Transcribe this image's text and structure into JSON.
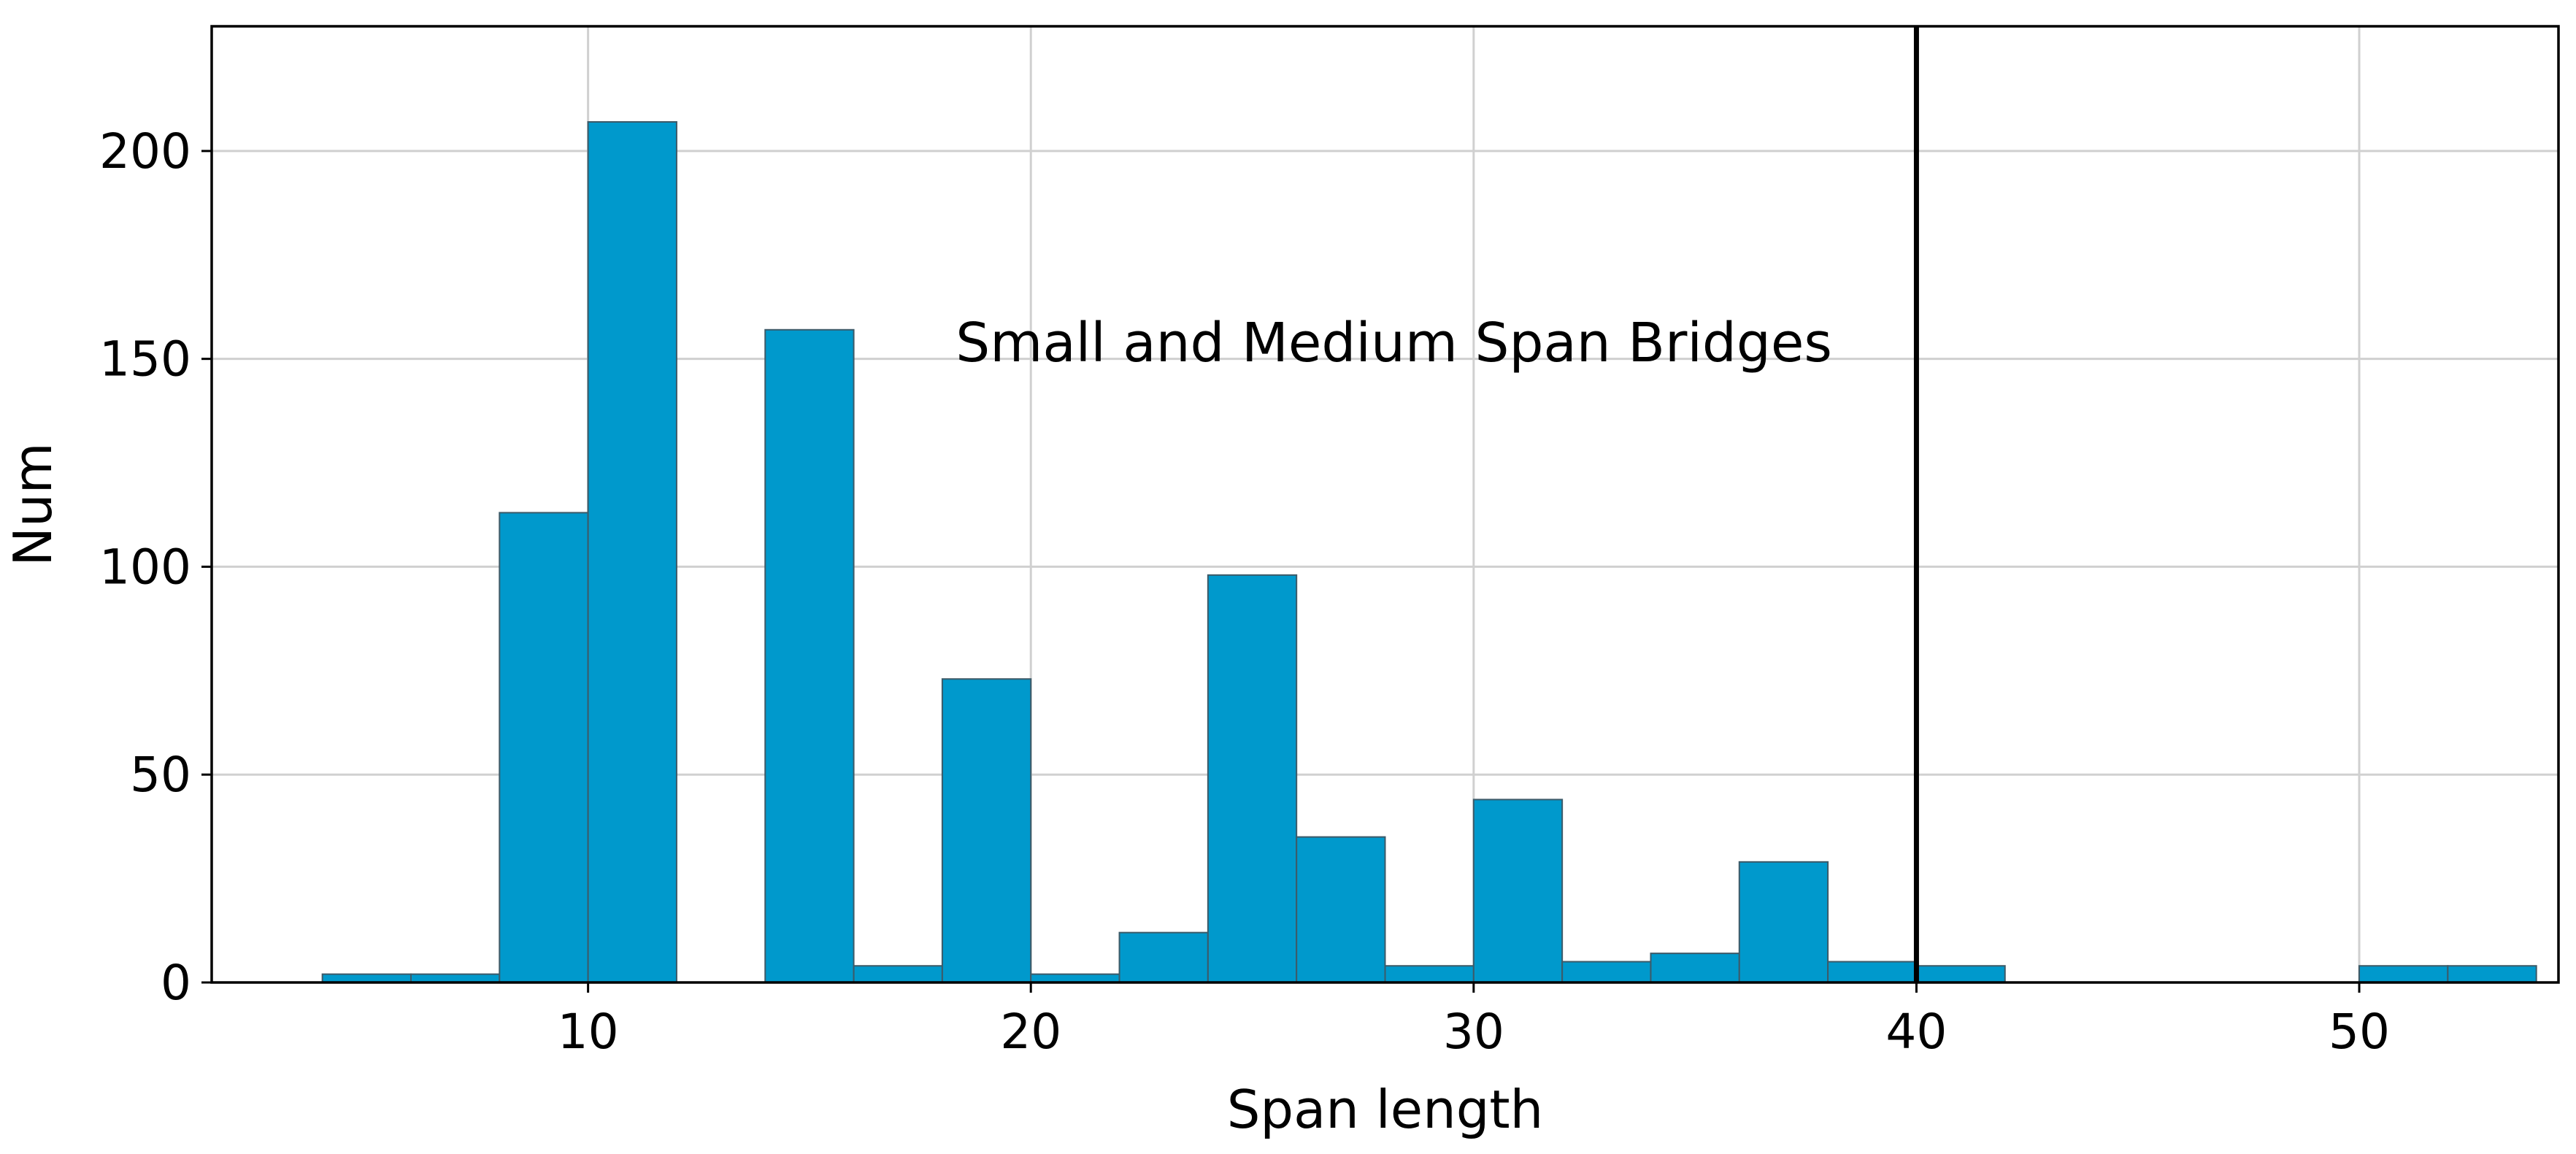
{
  "chart_data": {
    "type": "bar",
    "subtype": "histogram",
    "xlabel": "Span length",
    "ylabel": "Num",
    "xlim": [
      1.5,
      54.5
    ],
    "ylim": [
      0,
      230
    ],
    "xticks": [
      10,
      20,
      30,
      40,
      50
    ],
    "yticks": [
      0,
      50,
      100,
      150,
      200
    ],
    "grid": true,
    "bin_width": 2.0,
    "bins": [
      {
        "x0": 4.0,
        "x1": 6.0,
        "count": 2
      },
      {
        "x0": 6.0,
        "x1": 8.0,
        "count": 2
      },
      {
        "x0": 8.0,
        "x1": 10.0,
        "count": 113
      },
      {
        "x0": 10.0,
        "x1": 12.0,
        "count": 207
      },
      {
        "x0": 12.0,
        "x1": 14.0,
        "count": 0
      },
      {
        "x0": 14.0,
        "x1": 16.0,
        "count": 157
      },
      {
        "x0": 16.0,
        "x1": 18.0,
        "count": 4
      },
      {
        "x0": 18.0,
        "x1": 20.0,
        "count": 73
      },
      {
        "x0": 20.0,
        "x1": 22.0,
        "count": 2
      },
      {
        "x0": 22.0,
        "x1": 24.0,
        "count": 12
      },
      {
        "x0": 24.0,
        "x1": 26.0,
        "count": 98
      },
      {
        "x0": 26.0,
        "x1": 28.0,
        "count": 35
      },
      {
        "x0": 28.0,
        "x1": 30.0,
        "count": 4
      },
      {
        "x0": 30.0,
        "x1": 32.0,
        "count": 44
      },
      {
        "x0": 32.0,
        "x1": 34.0,
        "count": 5
      },
      {
        "x0": 34.0,
        "x1": 36.0,
        "count": 7
      },
      {
        "x0": 36.0,
        "x1": 38.0,
        "count": 29
      },
      {
        "x0": 38.0,
        "x1": 40.0,
        "count": 5
      },
      {
        "x0": 40.0,
        "x1": 42.0,
        "count": 4
      },
      {
        "x0": 42.0,
        "x1": 44.0,
        "count": 0
      },
      {
        "x0": 44.0,
        "x1": 46.0,
        "count": 0
      },
      {
        "x0": 46.0,
        "x1": 48.0,
        "count": 0
      },
      {
        "x0": 48.0,
        "x1": 50.0,
        "count": 0
      },
      {
        "x0": 50.0,
        "x1": 52.0,
        "count": 4
      },
      {
        "x0": 52.0,
        "x1": 54.0,
        "count": 4
      }
    ],
    "reference_line": {
      "x": 40
    },
    "annotation": {
      "text": "Small and Medium Span Bridges",
      "x": 28.2,
      "y": 154
    },
    "colors": {
      "bar": "#0099cc",
      "bar_edge": "#3d5a68",
      "grid": "#d0d0d0"
    }
  }
}
